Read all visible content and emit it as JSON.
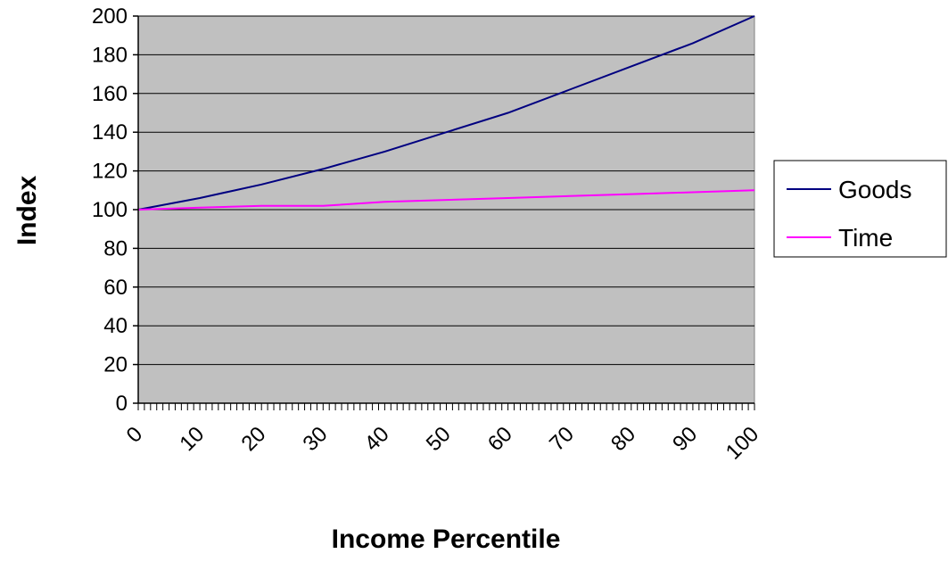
{
  "chart_data": {
    "type": "line",
    "title": "",
    "xlabel": "Income Percentile",
    "ylabel": "Index",
    "xlim": [
      0,
      100
    ],
    "ylim": [
      0,
      200
    ],
    "x_ticks": [
      0,
      10,
      20,
      30,
      40,
      50,
      60,
      70,
      80,
      90,
      100
    ],
    "y_ticks": [
      0,
      20,
      40,
      60,
      80,
      100,
      120,
      140,
      160,
      180,
      200
    ],
    "grid": "horizontal",
    "plot_background": "#c0c0c0",
    "legend_position": "right",
    "series": [
      {
        "name": "Goods",
        "color": "#000080",
        "x": [
          0,
          10,
          20,
          30,
          40,
          50,
          60,
          70,
          80,
          90,
          100
        ],
        "values": [
          100,
          106,
          113,
          121,
          130,
          140,
          150,
          162,
          174,
          186,
          200
        ]
      },
      {
        "name": "Time",
        "color": "#ff00ff",
        "x": [
          0,
          10,
          20,
          30,
          40,
          50,
          60,
          70,
          80,
          90,
          100
        ],
        "values": [
          100,
          101,
          102,
          102,
          104,
          105,
          106,
          107,
          108,
          109,
          110
        ]
      }
    ]
  }
}
